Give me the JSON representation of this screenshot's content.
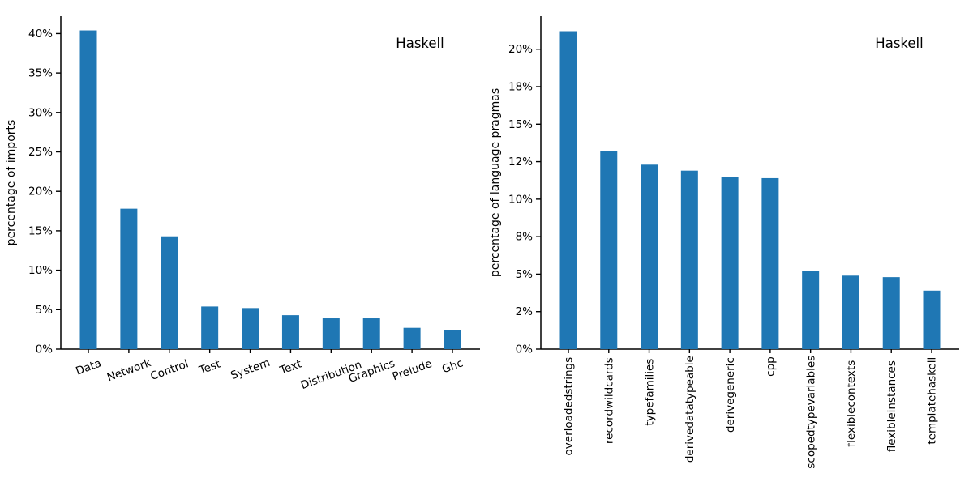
{
  "figure": {
    "background": "#ffffff",
    "bar_color": "#1f77b4",
    "axis_color": "#000000",
    "annotation_label": "Haskell"
  },
  "chart_data": [
    {
      "type": "bar",
      "annotation": "Haskell",
      "ylabel": "percentage of imports",
      "xlabel": "",
      "categories": [
        "Data",
        "Network",
        "Control",
        "Test",
        "System",
        "Text",
        "Distribution",
        "Graphics",
        "Prelude",
        "Ghc"
      ],
      "values": [
        40.4,
        17.8,
        14.3,
        5.4,
        5.2,
        4.3,
        3.9,
        3.9,
        2.7,
        2.4
      ],
      "ylim": [
        0,
        42.2
      ],
      "ytick_values": [
        0,
        5,
        10,
        15,
        20,
        25,
        30,
        35,
        40
      ],
      "ytick_labels": [
        "0%",
        "5%",
        "10%",
        "15%",
        "20%",
        "25%",
        "30%",
        "35%",
        "40%"
      ],
      "xtick_rotation": 20,
      "grid": false,
      "legend": false,
      "bar_color": "#1f77b4"
    },
    {
      "type": "bar",
      "annotation": "Haskell",
      "ylabel": "percentage of language pragmas",
      "xlabel": "",
      "categories": [
        "overloadedstrings",
        "recordwildcards",
        "typefamilies",
        "derivedatatypeable",
        "derivegeneric",
        "cpp",
        "scopedtypevariables",
        "flexiblecontexts",
        "flexibleinstances",
        "templatehaskell"
      ],
      "values": [
        21.2,
        13.2,
        12.3,
        11.9,
        11.5,
        11.4,
        5.2,
        4.9,
        4.8,
        3.9
      ],
      "ylim": [
        0,
        22.2
      ],
      "ytick_values": [
        0,
        2.5,
        5,
        7.5,
        10,
        12.5,
        15,
        17.5,
        20
      ],
      "ytick_labels": [
        "0%",
        "2%",
        "5%",
        "8%",
        "10%",
        "12%",
        "15%",
        "18%",
        "20%"
      ],
      "xtick_rotation": 90,
      "grid": false,
      "legend": false,
      "bar_color": "#1f77b4"
    }
  ]
}
